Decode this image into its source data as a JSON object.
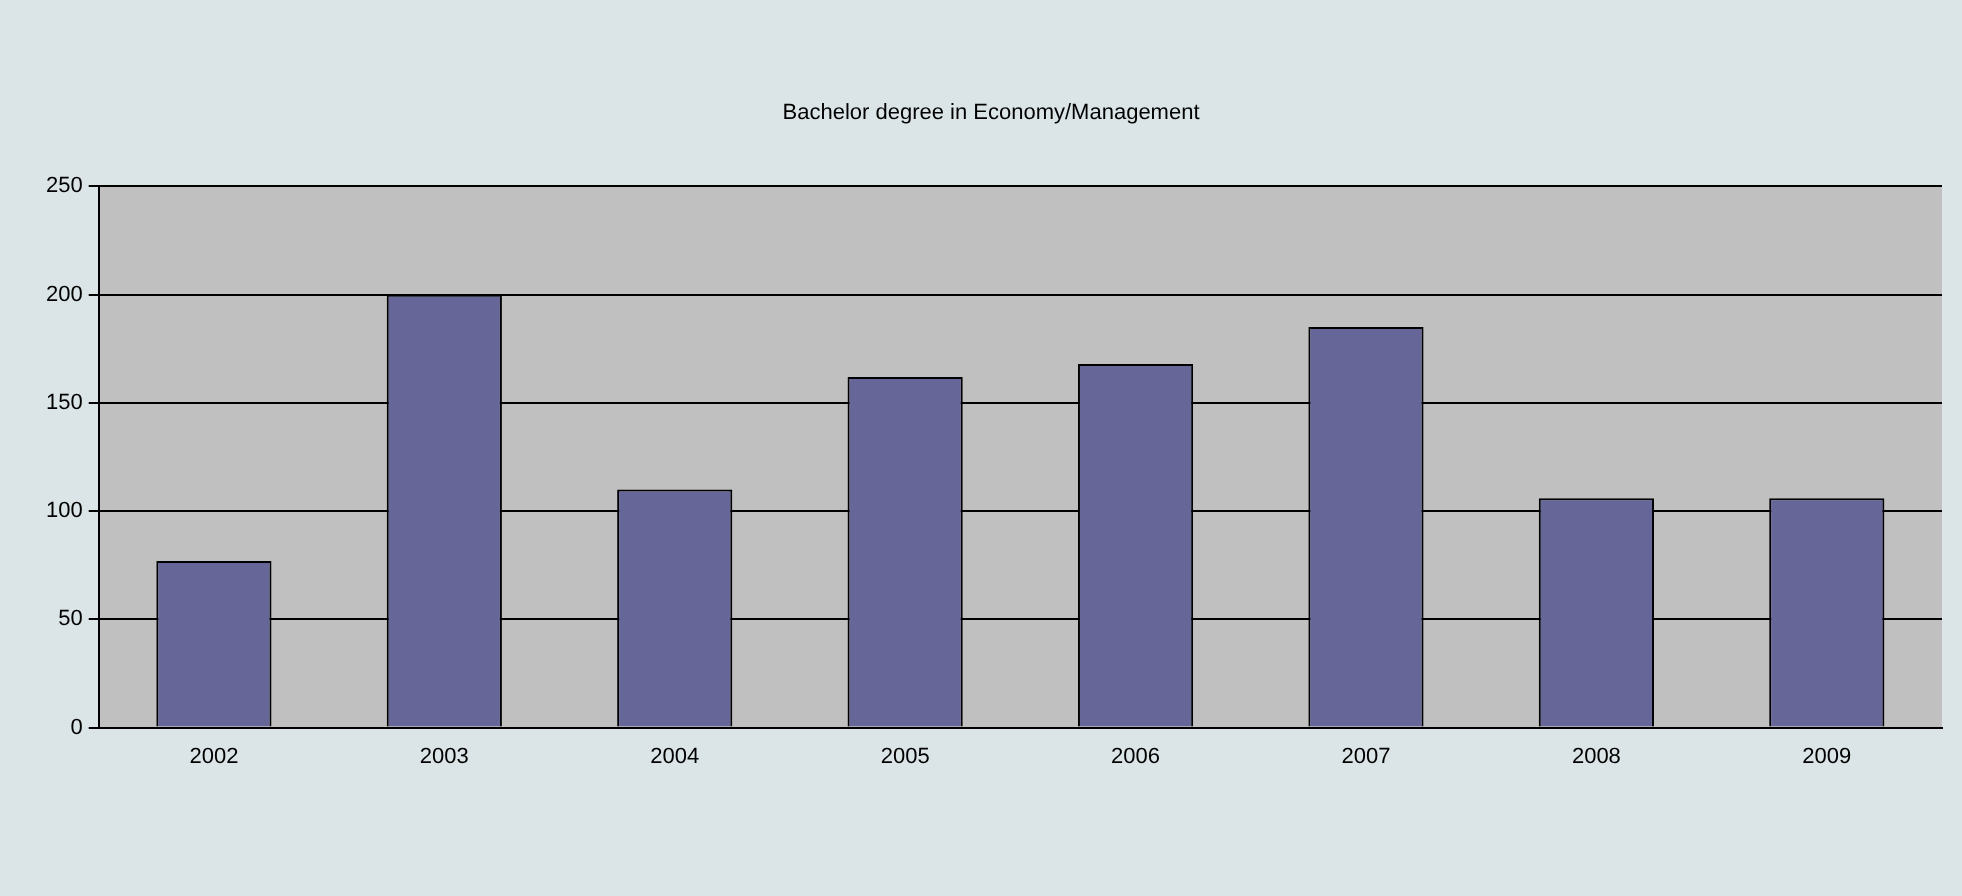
{
  "chart_data": {
    "type": "bar",
    "title": "Bachelor degree in Economy/Management",
    "categories": [
      "2002",
      "2003",
      "2004",
      "2005",
      "2006",
      "2007",
      "2008",
      "2009"
    ],
    "values": [
      77,
      200,
      110,
      162,
      168,
      185,
      106,
      106
    ],
    "color": "#666699",
    "ylim": [
      0,
      250
    ],
    "yticks": [
      0,
      50,
      100,
      150,
      200,
      250
    ],
    "grid": "y",
    "legend": false
  }
}
